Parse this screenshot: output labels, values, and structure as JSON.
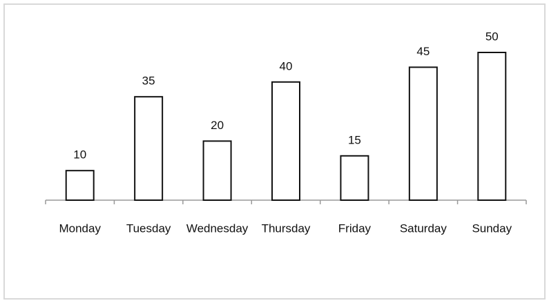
{
  "chart_data": {
    "type": "bar",
    "categories": [
      "Monday",
      "Tuesday",
      "Wednesday",
      "Thursday",
      "Friday",
      "Saturday",
      "Sunday"
    ],
    "values": [
      10,
      35,
      20,
      40,
      15,
      45,
      50
    ],
    "color": "#ffffff",
    "ylim": [
      0,
      50
    ]
  }
}
